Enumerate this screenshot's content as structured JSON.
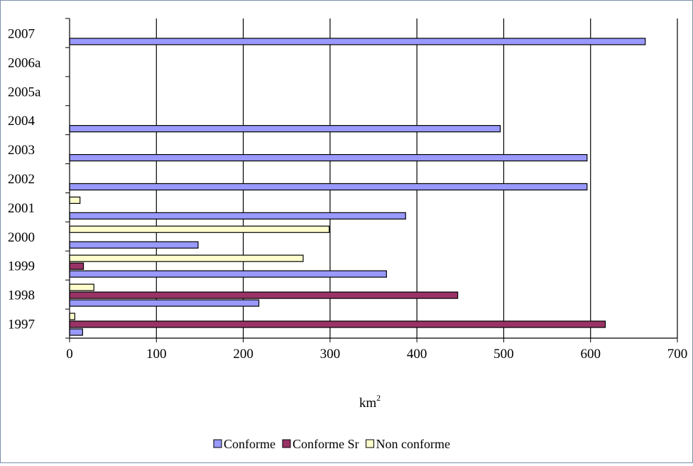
{
  "chart_data": {
    "type": "bar",
    "orientation": "horizontal",
    "title": "",
    "xlabel": "km",
    "xlabel_superscript": "2",
    "ylabel": "",
    "xlim": [
      0,
      700
    ],
    "xticks": [
      "0",
      "100",
      "200",
      "300",
      "400",
      "500",
      "600",
      "700"
    ],
    "grid": "vertical",
    "legend_position": "bottom",
    "categories": [
      "1997",
      "1998",
      "1999",
      "2000",
      "2001",
      "2002",
      "2003",
      "2004",
      "2005a",
      "2006a",
      "2007"
    ],
    "series": [
      {
        "name": "Conforme",
        "color": "#9999ff",
        "values": [
          15,
          218,
          365,
          148,
          387,
          596,
          596,
          496,
          null,
          null,
          663
        ]
      },
      {
        "name": "Conforme Sr",
        "color": "#993366",
        "values": [
          617,
          447,
          16,
          null,
          null,
          null,
          null,
          null,
          null,
          null,
          null
        ]
      },
      {
        "name": "Non conforme",
        "color": "#ffffcc",
        "values": [
          6,
          28,
          269,
          299,
          12,
          null,
          null,
          null,
          null,
          null,
          null
        ]
      }
    ]
  }
}
